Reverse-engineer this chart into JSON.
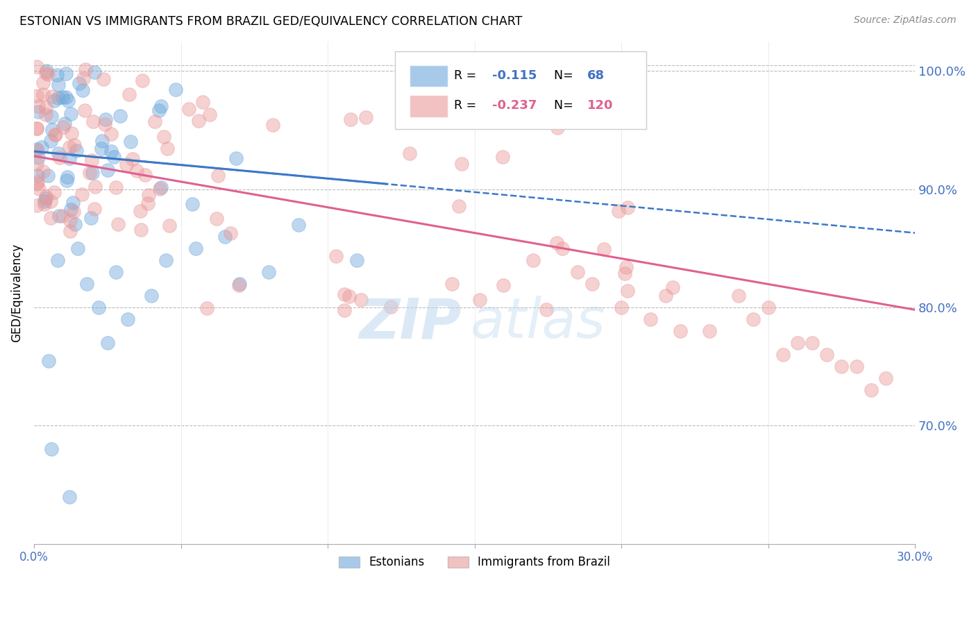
{
  "title": "ESTONIAN VS IMMIGRANTS FROM BRAZIL GED/EQUIVALENCY CORRELATION CHART",
  "source": "Source: ZipAtlas.com",
  "ylabel": "GED/Equivalency",
  "right_ytick_vals": [
    1.0,
    0.9,
    0.8,
    0.7
  ],
  "right_ytick_labels": [
    "100.0%",
    "90.0%",
    "80.0%",
    "70.0%"
  ],
  "xlim": [
    0.0,
    0.3
  ],
  "ylim": [
    0.6,
    1.025
  ],
  "blue_color": "#6fa8dc",
  "pink_color": "#ea9999",
  "line_blue": "#3c78c8",
  "line_pink": "#e06090",
  "grid_color": "#bbbbbb",
  "right_axis_color": "#4472c4",
  "legend_r1_val": "-0.115",
  "legend_n1_val": "68",
  "legend_r2_val": "-0.237",
  "legend_n2_val": "120",
  "blue_r_color": "#4472c4",
  "blue_n_color": "#4472c4",
  "pink_r_color": "#e06090",
  "pink_n_color": "#e06090",
  "est_line_x0": 0.0,
  "est_line_y0": 0.932,
  "est_line_x1": 0.3,
  "est_line_y1": 0.863,
  "bra_line_x0": 0.0,
  "bra_line_y0": 0.928,
  "bra_line_x1": 0.3,
  "bra_line_y1": 0.798
}
